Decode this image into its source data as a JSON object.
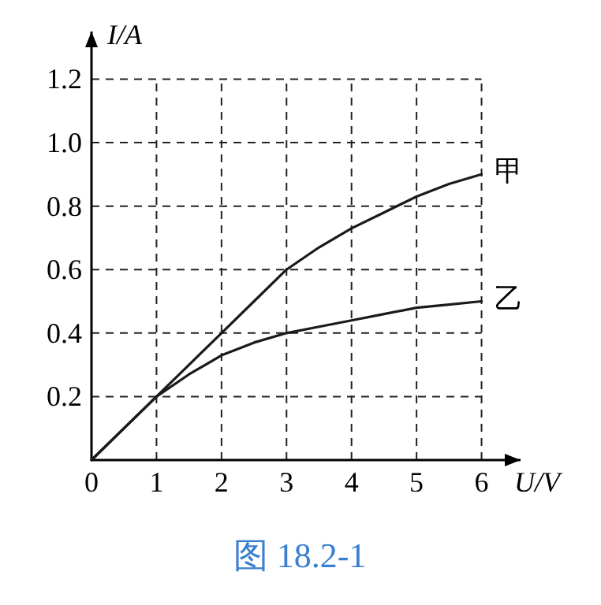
{
  "chart_data": {
    "type": "line",
    "xlabel": "U/V",
    "ylabel": "I/A",
    "x": [
      0,
      0.5,
      1,
      1.5,
      2,
      2.5,
      3,
      3.5,
      4,
      4.5,
      5,
      5.5,
      6
    ],
    "series": [
      {
        "name": "甲",
        "color": "#1a1a1a",
        "values": [
          0,
          0.1,
          0.2,
          0.3,
          0.4,
          0.5,
          0.6,
          0.67,
          0.73,
          0.78,
          0.83,
          0.87,
          0.9
        ]
      },
      {
        "name": "乙",
        "color": "#1a1a1a",
        "values": [
          0,
          0.1,
          0.2,
          0.27,
          0.33,
          0.37,
          0.4,
          0.42,
          0.44,
          0.46,
          0.48,
          0.49,
          0.5
        ]
      }
    ],
    "xlim": [
      0,
      6.6
    ],
    "ylim": [
      0,
      1.35
    ],
    "xticks": [
      0,
      1,
      2,
      3,
      4,
      5,
      6
    ],
    "yticks": [
      0.2,
      0.4,
      0.6,
      0.8,
      {
        "value": 1,
        "label": "1.0"
      },
      1.2
    ],
    "grid": true,
    "line_style": "solid",
    "annotations": [
      "图 18.2-1"
    ]
  }
}
